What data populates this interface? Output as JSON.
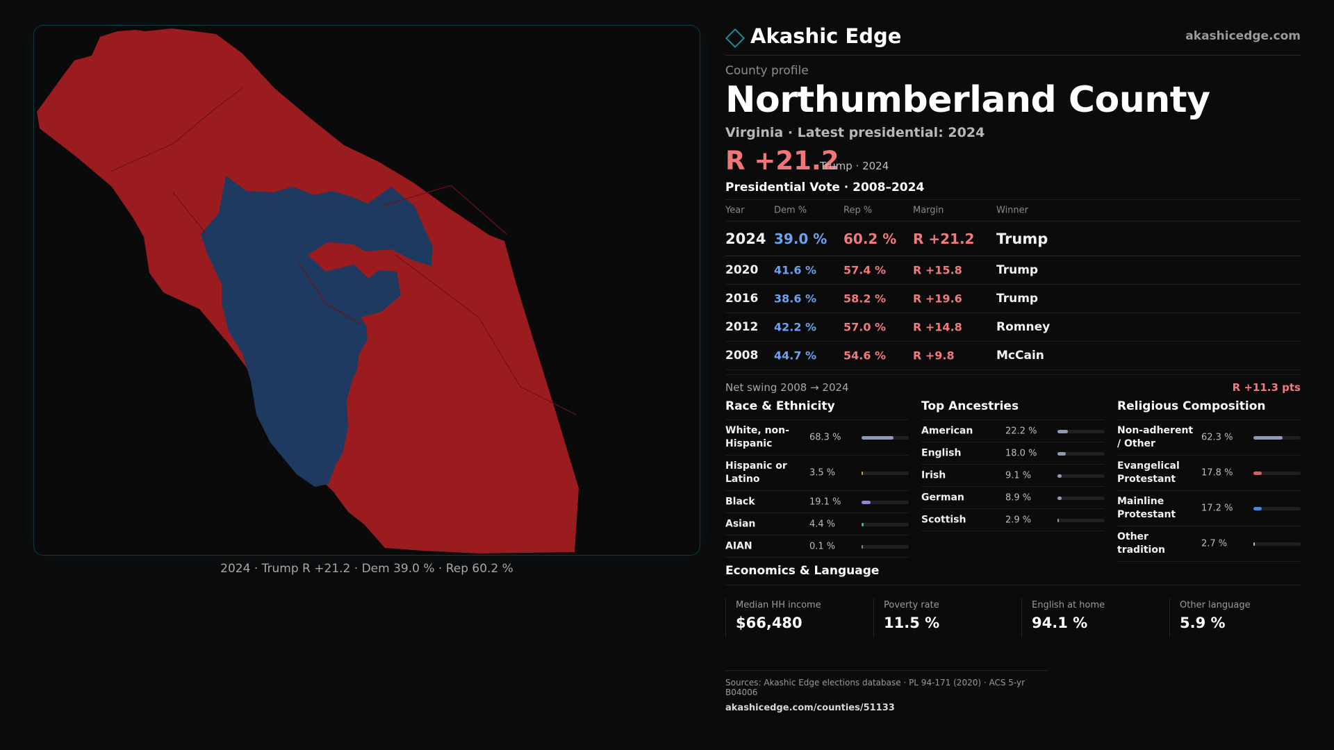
{
  "map": {
    "caption": "2024 · Trump R +21.2 · Dem 39.0 % · Rep 60.2 %",
    "colors": {
      "rep": "#9b1c1f",
      "dem": "#1e3a60",
      "background": "#0a0a0b",
      "border": "#103a40"
    }
  },
  "header": {
    "brand": "Akashic Edge",
    "site": "akashicedge.com",
    "kicker": "County profile",
    "title": "Northumberland County",
    "subtitle": "Virginia · Latest presidential: 2024",
    "margin": "R +21.2",
    "margin_note": "Trump · 2024"
  },
  "presidential": {
    "heading": "Presidential Vote · 2008–2024",
    "columns": [
      "Year",
      "Dem %",
      "Rep %",
      "Margin",
      "Winner"
    ],
    "rows": [
      {
        "year": "2024",
        "dem": "39.0 %",
        "rep": "60.2 %",
        "margin": "R +21.2",
        "winner": "Trump"
      },
      {
        "year": "2020",
        "dem": "41.6 %",
        "rep": "57.4 %",
        "margin": "R +15.8",
        "winner": "Trump"
      },
      {
        "year": "2016",
        "dem": "38.6 %",
        "rep": "58.2 %",
        "margin": "R +19.6",
        "winner": "Trump"
      },
      {
        "year": "2012",
        "dem": "42.2 %",
        "rep": "57.0 %",
        "margin": "R +14.8",
        "winner": "Romney"
      },
      {
        "year": "2008",
        "dem": "44.7 %",
        "rep": "54.6 %",
        "margin": "R +9.8",
        "winner": "McCain"
      }
    ],
    "swing_label": "Net swing 2008 → 2024",
    "swing_value": "R +11.3 pts"
  },
  "race": {
    "heading": "Race & Ethnicity",
    "rows": [
      {
        "label": "White, non-Hispanic",
        "value": "68.3 %",
        "pct": 68.3,
        "color": "#8f9bb5"
      },
      {
        "label": "Hispanic or Latino",
        "value": "3.5 %",
        "pct": 3.5,
        "color": "#e0a030"
      },
      {
        "label": "Black",
        "value": "19.1 %",
        "pct": 19.1,
        "color": "#9b7fe0"
      },
      {
        "label": "Asian",
        "value": "4.4 %",
        "pct": 4.4,
        "color": "#3fb5a0"
      },
      {
        "label": "AIAN",
        "value": "0.1 %",
        "pct": 0.1,
        "color": "#8a8a8a"
      }
    ]
  },
  "ancestry": {
    "heading": "Top Ancestries",
    "rows": [
      {
        "label": "American",
        "value": "22.2 %",
        "pct": 22.2,
        "color": "#8f9bb5"
      },
      {
        "label": "English",
        "value": "18.0 %",
        "pct": 18.0,
        "color": "#8f9bb5"
      },
      {
        "label": "Irish",
        "value": "9.1 %",
        "pct": 9.1,
        "color": "#8f9bb5"
      },
      {
        "label": "German",
        "value": "8.9 %",
        "pct": 8.9,
        "color": "#8f9bb5"
      },
      {
        "label": "Scottish",
        "value": "2.9 %",
        "pct": 2.9,
        "color": "#8f9bb5"
      }
    ]
  },
  "religion": {
    "heading": "Religious Composition",
    "rows": [
      {
        "label": "Non-adherent / Other",
        "value": "62.3 %",
        "pct": 62.3,
        "color": "#8f9bb5"
      },
      {
        "label": "Evangelical Protestant",
        "value": "17.8 %",
        "pct": 17.8,
        "color": "#e05a5e"
      },
      {
        "label": "Mainline Protestant",
        "value": "17.2 %",
        "pct": 17.2,
        "color": "#4d85d8"
      },
      {
        "label": "Other tradition",
        "value": "2.7 %",
        "pct": 2.7,
        "color": "#bdbdbd"
      }
    ]
  },
  "economics": {
    "heading": "Economics & Language",
    "cells": [
      {
        "label": "Median HH income",
        "value": "$66,480"
      },
      {
        "label": "Poverty rate",
        "value": "11.5 %"
      },
      {
        "label": "English at home",
        "value": "94.1 %"
      },
      {
        "label": "Other language",
        "value": "5.9 %"
      }
    ]
  },
  "footer": {
    "sources": "Sources: Akashic Edge elections database · PL 94-171 (2020) · ACS 5-yr B04006",
    "url": "akashicedge.com/counties/51133"
  }
}
